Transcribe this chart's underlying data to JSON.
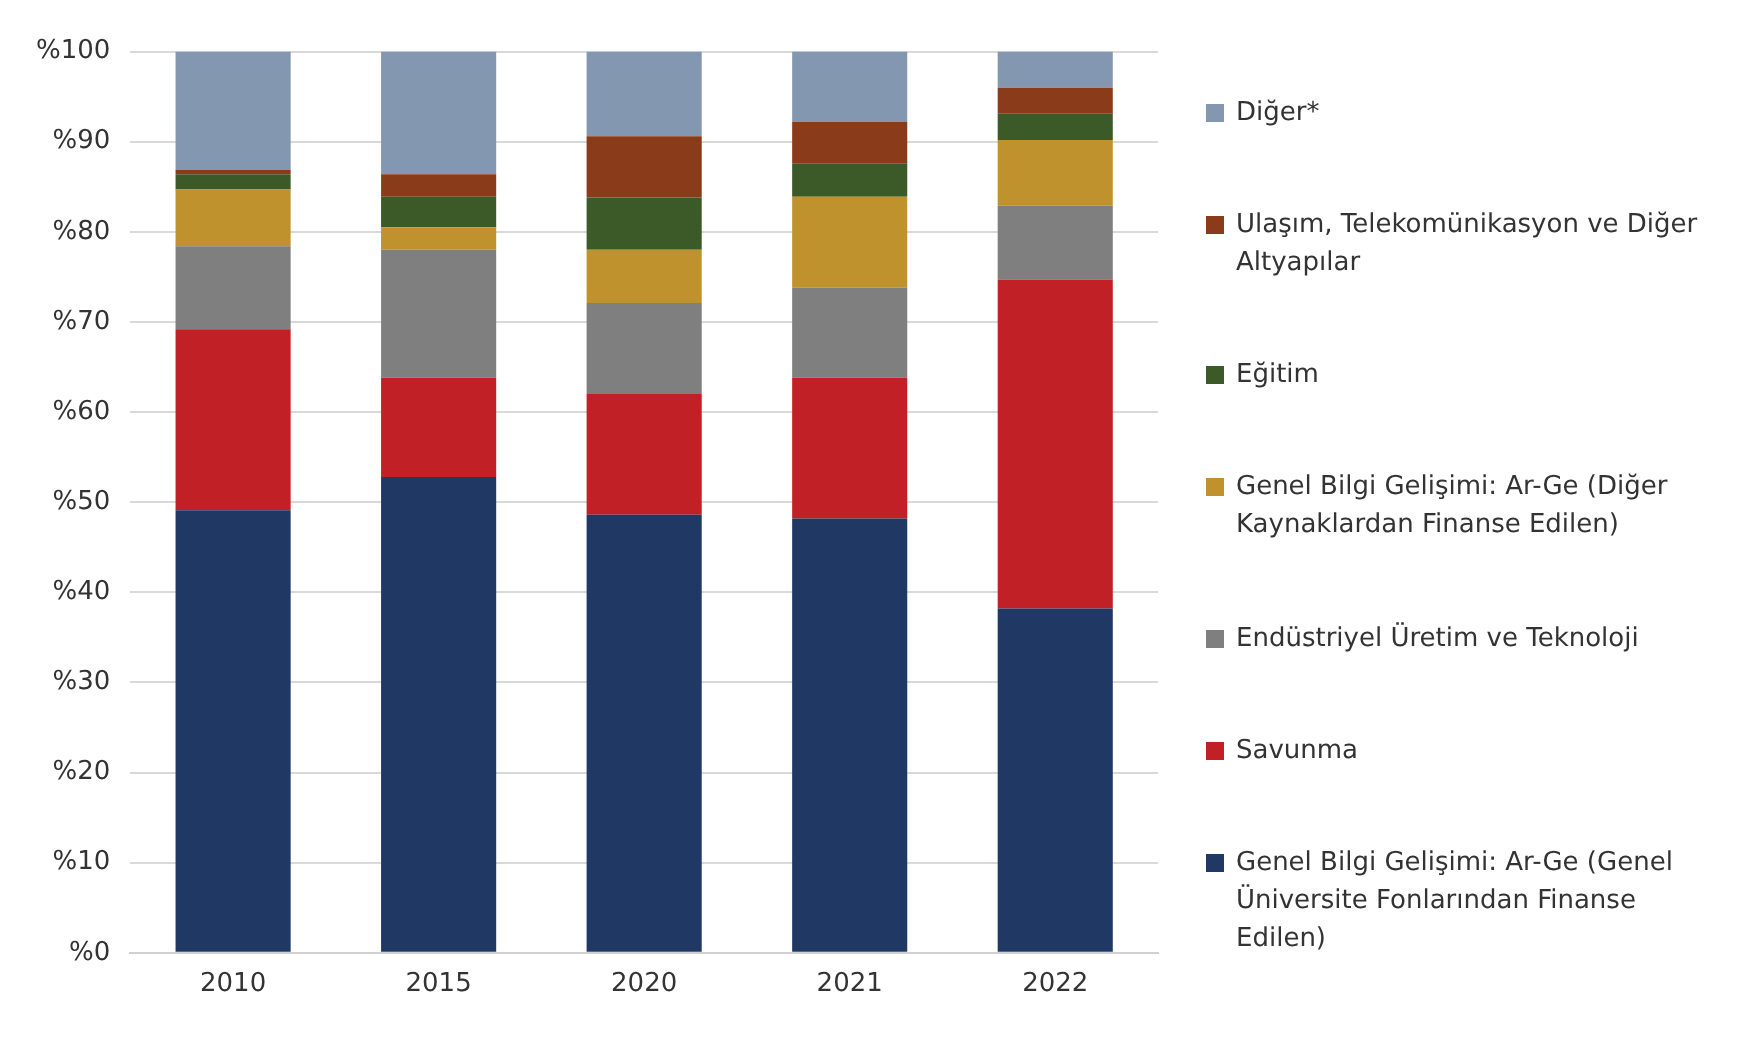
{
  "chart_data": {
    "type": "bar",
    "stacked": true,
    "categories": [
      "2010",
      "2015",
      "2020",
      "2021",
      "2022"
    ],
    "series": [
      {
        "name": "Genel Bilgi Gelişimi:  Ar-Ge (Genel Üniversite Fonlarından Finanse Edilen)",
        "color": "#1f3864",
        "values": [
          49.1,
          52.8,
          48.6,
          48.2,
          38.2
        ]
      },
      {
        "name": "Savunma",
        "color": "#c12026",
        "values": [
          20.1,
          11.0,
          13.4,
          15.6,
          36.5
        ]
      },
      {
        "name": "Endüstriyel Üretim ve Teknoloji",
        "color": "#7f7f7f",
        "values": [
          9.2,
          14.2,
          10.1,
          10.0,
          8.2
        ]
      },
      {
        "name": "Genel Bilgi Gelişimi: Ar-Ge (Diğer Kaynaklardan Finanse Edilen)",
        "color": "#c0922e",
        "values": [
          6.3,
          2.5,
          5.9,
          10.1,
          7.3
        ]
      },
      {
        "name": "Eğitim",
        "color": "#3b5a27",
        "values": [
          1.7,
          3.4,
          5.8,
          3.7,
          2.9
        ]
      },
      {
        "name": "Ulaşım, Telekomünikasyon ve Diğer Altyapılar",
        "color": "#8a3b1a",
        "values": [
          0.5,
          2.5,
          6.8,
          4.6,
          2.9
        ]
      },
      {
        "name": "Diğer*",
        "color": "#8497b0",
        "values": [
          13.1,
          13.6,
          9.4,
          7.8,
          4.0
        ]
      }
    ],
    "ylim": [
      0,
      100
    ],
    "yticks": [
      {
        "value": 0,
        "label": "%0"
      },
      {
        "value": 10,
        "label": "%10"
      },
      {
        "value": 20,
        "label": "%20"
      },
      {
        "value": 30,
        "label": "%30"
      },
      {
        "value": 40,
        "label": "%40"
      },
      {
        "value": 50,
        "label": "%50"
      },
      {
        "value": 60,
        "label": "%60"
      },
      {
        "value": 70,
        "label": "%70"
      },
      {
        "value": 80,
        "label": "%80"
      },
      {
        "value": 90,
        "label": "%90"
      },
      {
        "value": 100,
        "label": "%100"
      }
    ],
    "grid": "y",
    "legend": "right"
  }
}
